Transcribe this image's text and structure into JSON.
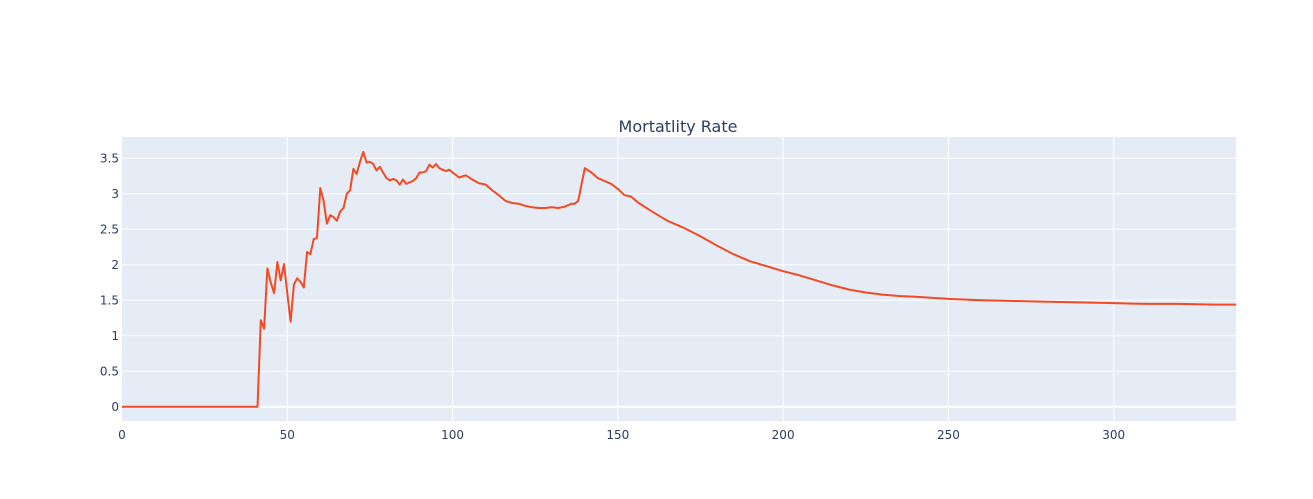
{
  "colors": {
    "plot_background": "#e5ecf6",
    "gridline": "#ffffff",
    "line": "#f24a23",
    "text": "#2a3f5f"
  },
  "chart_data": {
    "type": "line",
    "title": "Mortatlity Rate",
    "xlabel": "",
    "ylabel": "",
    "xlim": [
      0,
      337
    ],
    "ylim": [
      -0.2,
      3.8
    ],
    "x_ticks": [
      0,
      50,
      100,
      150,
      200,
      250,
      300
    ],
    "x_tick_labels": [
      "0",
      "50",
      "100",
      "150",
      "200",
      "250",
      "300"
    ],
    "y_ticks": [
      0,
      0.5,
      1,
      1.5,
      2,
      2.5,
      3,
      3.5
    ],
    "y_tick_labels": [
      "0",
      "0.5",
      "1",
      "1.5",
      "2",
      "2.5",
      "3",
      "3.5"
    ],
    "grid": true,
    "legend": "none",
    "series": [
      {
        "x": [
          0,
          10,
          20,
          30,
          40,
          41,
          42,
          43,
          44,
          45,
          46,
          47,
          48,
          49,
          50,
          51,
          52,
          53,
          54,
          55,
          56,
          57,
          58,
          59,
          60,
          61,
          62,
          63,
          64,
          65,
          66,
          67,
          68,
          69,
          70,
          71,
          72,
          73,
          74,
          75,
          76,
          77,
          78,
          79,
          80,
          81,
          82,
          83,
          84,
          85,
          86,
          87,
          88,
          89,
          90,
          91,
          92,
          93,
          94,
          95,
          96,
          97,
          98,
          99,
          100,
          102,
          104,
          106,
          108,
          110,
          112,
          114,
          116,
          118,
          120,
          122,
          124,
          126,
          128,
          130,
          132,
          134,
          136,
          137,
          138,
          140,
          142,
          144,
          146,
          148,
          150,
          152,
          154,
          156,
          158,
          160,
          165,
          170,
          175,
          180,
          185,
          190,
          195,
          200,
          205,
          210,
          215,
          220,
          225,
          230,
          235,
          240,
          250,
          260,
          270,
          280,
          290,
          300,
          310,
          320,
          330,
          337
        ],
        "values": [
          0,
          0,
          0,
          0,
          0,
          0,
          1.22,
          1.1,
          1.95,
          1.75,
          1.6,
          2.04,
          1.78,
          2.01,
          1.6,
          1.2,
          1.72,
          1.81,
          1.76,
          1.68,
          2.18,
          2.15,
          2.36,
          2.38,
          3.08,
          2.9,
          2.58,
          2.7,
          2.67,
          2.62,
          2.75,
          2.8,
          3.0,
          3.05,
          3.35,
          3.28,
          3.45,
          3.59,
          3.44,
          3.45,
          3.42,
          3.33,
          3.38,
          3.3,
          3.22,
          3.19,
          3.21,
          3.19,
          3.13,
          3.2,
          3.14,
          3.16,
          3.18,
          3.22,
          3.3,
          3.3,
          3.32,
          3.41,
          3.37,
          3.42,
          3.36,
          3.34,
          3.32,
          3.34,
          3.3,
          3.23,
          3.26,
          3.2,
          3.15,
          3.13,
          3.05,
          2.98,
          2.9,
          2.87,
          2.86,
          2.83,
          2.81,
          2.8,
          2.8,
          2.81,
          2.8,
          2.82,
          2.86,
          2.86,
          2.9,
          3.36,
          3.3,
          3.22,
          3.18,
          3.14,
          3.07,
          2.98,
          2.96,
          2.88,
          2.82,
          2.76,
          2.62,
          2.52,
          2.4,
          2.27,
          2.15,
          2.05,
          1.98,
          1.91,
          1.85,
          1.78,
          1.71,
          1.65,
          1.61,
          1.58,
          1.56,
          1.55,
          1.52,
          1.5,
          1.49,
          1.48,
          1.47,
          1.46,
          1.45,
          1.45,
          1.44,
          1.44
        ]
      }
    ]
  }
}
